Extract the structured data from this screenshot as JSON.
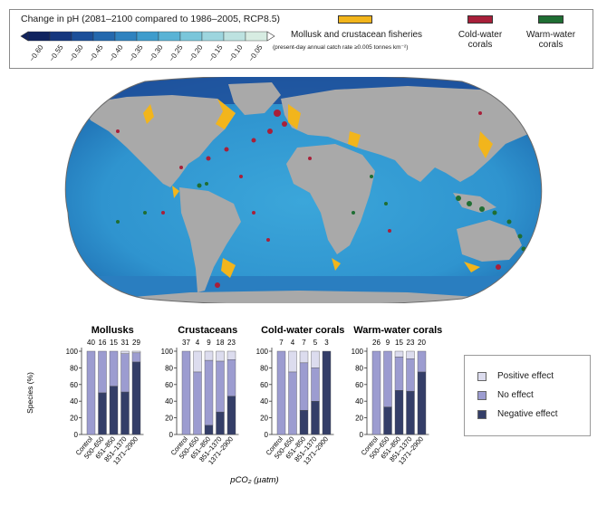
{
  "legend": {
    "colorbar_title": "Change in pH (2081–2100 compared to 1986–2005, RCP8.5)",
    "colorbar_ticks": [
      "−0.60",
      "−0.55",
      "−0.50",
      "−0.45",
      "−0.40",
      "−0.35",
      "−0.30",
      "−0.25",
      "−0.20",
      "−0.15",
      "−0.10",
      "−0.05"
    ],
    "colorbar_colors": [
      "#10235e",
      "#15377e",
      "#1b4f99",
      "#2468ad",
      "#2f82bf",
      "#3f9ccc",
      "#5ab3d5",
      "#7ac6da",
      "#9dd5de",
      "#bde2e0",
      "#d7ece2"
    ],
    "categories": [
      {
        "label": "Mollusk and crustacean fisheries",
        "sublabel": "(present-day annual catch rate ≥0.005 tonnes km⁻²)",
        "color": "#f2b51c"
      },
      {
        "label": "Cold-water corals",
        "color": "#a8203a"
      },
      {
        "label": "Warm-water corals",
        "color": "#1f6e33"
      }
    ]
  },
  "map": {
    "ocean_color": "#3aa0d6",
    "land_color": "#a8a8a8",
    "deep_ocean_color": "#2a86c6"
  },
  "chart_data": {
    "type": "bar",
    "stacked": true,
    "categories": [
      "Control",
      "500–650",
      "651–850",
      "851–1370",
      "1371–2900"
    ],
    "xlabel": "pCO₂ (µatm)",
    "ylabel": "Species (%)",
    "ylim": [
      0,
      100
    ],
    "yticks": [
      0,
      20,
      40,
      60,
      80,
      100
    ],
    "legend_position": "right",
    "series_names": [
      "Positive effect",
      "No effect",
      "Negative effect"
    ],
    "series_colors": [
      "#dcdcee",
      "#9c9cd0",
      "#343e68"
    ],
    "panels": [
      {
        "title": "Mollusks",
        "counts": [
          "40",
          "16",
          "15",
          "31",
          "29"
        ],
        "negative": [
          0,
          50,
          58,
          51,
          87
        ],
        "no_effect": [
          100,
          50,
          42,
          46,
          11
        ],
        "positive": [
          0,
          0,
          0,
          3,
          2
        ]
      },
      {
        "title": "Crustaceans",
        "counts": [
          "37",
          "4",
          "9",
          "18",
          "23"
        ],
        "negative": [
          0,
          0,
          11,
          27,
          46
        ],
        "no_effect": [
          100,
          75,
          78,
          61,
          44
        ],
        "positive": [
          0,
          25,
          11,
          12,
          10
        ]
      },
      {
        "title": "Cold-water corals",
        "counts": [
          "7",
          "4",
          "7",
          "5",
          "3"
        ],
        "negative": [
          0,
          0,
          29,
          40,
          100
        ],
        "no_effect": [
          100,
          75,
          57,
          40,
          0
        ],
        "positive": [
          0,
          25,
          14,
          20,
          0
        ]
      },
      {
        "title": "Warm-water corals",
        "counts": [
          "26",
          "9",
          "15",
          "23",
          "20"
        ],
        "negative": [
          0,
          33,
          53,
          52,
          75
        ],
        "no_effect": [
          100,
          67,
          40,
          39,
          25
        ],
        "positive": [
          0,
          0,
          7,
          9,
          0
        ]
      }
    ]
  }
}
